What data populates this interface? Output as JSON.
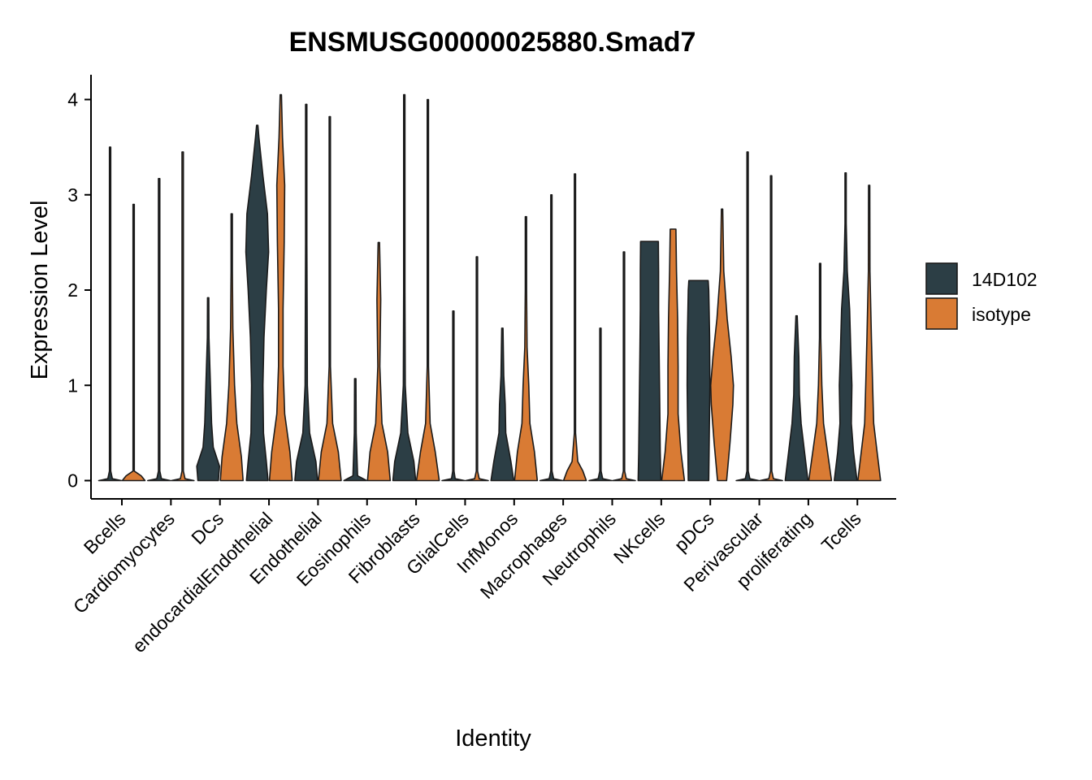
{
  "chart_data": {
    "type": "violin",
    "title": "ENSMUSG00000025880.Smad7",
    "xlabel": "Identity",
    "ylabel": "Expression Level",
    "ylim": [
      -0.2,
      4.25
    ],
    "yticks": [
      0,
      1,
      2,
      3,
      4
    ],
    "grid": false,
    "legend_position": "right",
    "categories": [
      "Bcells",
      "Cardiomyocytes",
      "DCs",
      "endocardialEndothelial",
      "Endothelial",
      "Eosinophils",
      "Fibroblasts",
      "GlialCells",
      "InfMonos",
      "Macrophages",
      "Neutrophils",
      "NKcells",
      "pDCs",
      "Perivascular",
      "proliferating",
      "Tcells"
    ],
    "series": [
      {
        "name": "14D102",
        "color": "#2C3E45",
        "max": [
          3.5,
          3.17,
          1.92,
          3.73,
          3.95,
          1.07,
          4.05,
          1.78,
          1.6,
          3.0,
          1.6,
          2.51,
          2.1,
          3.45,
          1.73,
          3.23
        ],
        "profiles": [
          [
            [
              0,
              0.5
            ],
            [
              0.02,
              0.1
            ],
            [
              0.1,
              0.01
            ],
            [
              3.5,
              0.005
            ]
          ],
          [
            [
              0,
              0.5
            ],
            [
              0.02,
              0.1
            ],
            [
              0.1,
              0.01
            ],
            [
              3.17,
              0.005
            ]
          ],
          [
            [
              0,
              0.9
            ],
            [
              0.15,
              1
            ],
            [
              0.35,
              0.45
            ],
            [
              0.6,
              0.3
            ],
            [
              1.0,
              0.2
            ],
            [
              1.5,
              0.07
            ],
            [
              1.92,
              0.02
            ]
          ],
          [
            [
              0,
              0.95
            ],
            [
              0.2,
              0.8
            ],
            [
              0.5,
              0.55
            ],
            [
              1.0,
              0.5
            ],
            [
              1.5,
              0.6
            ],
            [
              2.0,
              0.8
            ],
            [
              2.4,
              1
            ],
            [
              2.8,
              0.9
            ],
            [
              3.2,
              0.5
            ],
            [
              3.6,
              0.15
            ],
            [
              3.73,
              0.05
            ]
          ],
          [
            [
              0,
              1
            ],
            [
              0.2,
              0.85
            ],
            [
              0.5,
              0.3
            ],
            [
              1.0,
              0.1
            ],
            [
              1.8,
              0.08
            ],
            [
              2.5,
              0.04
            ],
            [
              3.95,
              0.01
            ]
          ],
          [
            [
              0,
              0.25
            ],
            [
              0.05,
              0.05
            ],
            [
              0.5,
              0.02
            ],
            [
              1.07,
              0.01
            ]
          ],
          [
            [
              0,
              0.95
            ],
            [
              0.2,
              0.8
            ],
            [
              0.5,
              0.3
            ],
            [
              1.0,
              0.08
            ],
            [
              2.0,
              0.03
            ],
            [
              4.05,
              0.01
            ]
          ],
          [
            [
              0,
              0.5
            ],
            [
              0.02,
              0.08
            ],
            [
              0.1,
              0.01
            ],
            [
              1.78,
              0.005
            ]
          ],
          [
            [
              0,
              1
            ],
            [
              0.2,
              0.75
            ],
            [
              0.5,
              0.3
            ],
            [
              0.8,
              0.25
            ],
            [
              1.1,
              0.12
            ],
            [
              1.6,
              0.03
            ]
          ],
          [
            [
              0,
              0.5
            ],
            [
              0.02,
              0.1
            ],
            [
              0.1,
              0.01
            ],
            [
              3.0,
              0.005
            ]
          ],
          [
            [
              0,
              0.5
            ],
            [
              0.02,
              0.1
            ],
            [
              0.1,
              0.01
            ],
            [
              1.6,
              0.005
            ]
          ],
          [
            [
              0,
              1
            ],
            [
              0.3,
              0.95
            ],
            [
              0.8,
              0.9
            ],
            [
              1.3,
              0.85
            ],
            [
              1.8,
              0.8
            ],
            [
              2.2,
              0.8
            ],
            [
              2.51,
              0.78
            ]
          ],
          [
            [
              0,
              0.9
            ],
            [
              0.5,
              0.95
            ],
            [
              1.0,
              1
            ],
            [
              1.5,
              0.98
            ],
            [
              2.0,
              0.9
            ],
            [
              2.1,
              0.85
            ]
          ],
          [
            [
              0,
              0.5
            ],
            [
              0.02,
              0.1
            ],
            [
              0.1,
              0.01
            ],
            [
              3.45,
              0.005
            ]
          ],
          [
            [
              0,
              1
            ],
            [
              0.3,
              0.7
            ],
            [
              0.6,
              0.4
            ],
            [
              0.9,
              0.25
            ],
            [
              1.3,
              0.2
            ],
            [
              1.6,
              0.1
            ],
            [
              1.73,
              0.05
            ]
          ],
          [
            [
              0,
              1
            ],
            [
              0.3,
              0.7
            ],
            [
              0.6,
              0.5
            ],
            [
              1.0,
              0.55
            ],
            [
              1.4,
              0.45
            ],
            [
              1.8,
              0.35
            ],
            [
              2.2,
              0.15
            ],
            [
              2.7,
              0.05
            ],
            [
              3.23,
              0.01
            ]
          ]
        ]
      },
      {
        "name": "isotype",
        "color": "#D97B34",
        "max": [
          2.9,
          3.45,
          2.8,
          4.05,
          3.82,
          2.5,
          4.0,
          2.35,
          2.77,
          3.22,
          2.4,
          2.64,
          2.85,
          3.2,
          2.28,
          3.1
        ],
        "profiles": [
          [
            [
              0,
              0.9
            ],
            [
              0.05,
              0.6
            ],
            [
              0.1,
              0.05
            ],
            [
              2.9,
              0.005
            ]
          ],
          [
            [
              0,
              0.5
            ],
            [
              0.02,
              0.1
            ],
            [
              0.1,
              0.01
            ],
            [
              3.45,
              0.005
            ]
          ],
          [
            [
              0,
              1
            ],
            [
              0.25,
              0.85
            ],
            [
              0.6,
              0.45
            ],
            [
              1.0,
              0.25
            ],
            [
              1.6,
              0.1
            ],
            [
              2.2,
              0.04
            ],
            [
              2.8,
              0.01
            ]
          ],
          [
            [
              0,
              1
            ],
            [
              0.3,
              0.8
            ],
            [
              0.7,
              0.35
            ],
            [
              1.2,
              0.2
            ],
            [
              1.8,
              0.2
            ],
            [
              2.5,
              0.3
            ],
            [
              3.1,
              0.35
            ],
            [
              3.6,
              0.15
            ],
            [
              4.05,
              0.02
            ]
          ],
          [
            [
              0,
              1
            ],
            [
              0.3,
              0.75
            ],
            [
              0.6,
              0.25
            ],
            [
              1.2,
              0.05
            ],
            [
              2.5,
              0.02
            ],
            [
              3.82,
              0.01
            ]
          ],
          [
            [
              0,
              0.9
            ],
            [
              0.3,
              0.7
            ],
            [
              0.6,
              0.25
            ],
            [
              1.2,
              0.08
            ],
            [
              1.9,
              0.15
            ],
            [
              2.5,
              0.05
            ]
          ],
          [
            [
              0,
              1
            ],
            [
              0.3,
              0.65
            ],
            [
              0.6,
              0.2
            ],
            [
              1.2,
              0.05
            ],
            [
              2.5,
              0.02
            ],
            [
              4.0,
              0.01
            ]
          ],
          [
            [
              0,
              0.5
            ],
            [
              0.02,
              0.1
            ],
            [
              0.1,
              0.01
            ],
            [
              2.35,
              0.005
            ]
          ],
          [
            [
              0,
              1
            ],
            [
              0.3,
              0.75
            ],
            [
              0.6,
              0.35
            ],
            [
              1.0,
              0.25
            ],
            [
              1.4,
              0.1
            ],
            [
              2.0,
              0.03
            ],
            [
              2.77,
              0.01
            ]
          ],
          [
            [
              0,
              1
            ],
            [
              0.1,
              0.7
            ],
            [
              0.2,
              0.25
            ],
            [
              0.5,
              0.05
            ],
            [
              1.5,
              0.02
            ],
            [
              3.22,
              0.01
            ]
          ],
          [
            [
              0,
              0.5
            ],
            [
              0.02,
              0.1
            ],
            [
              0.1,
              0.01
            ],
            [
              2.4,
              0.005
            ]
          ],
          [
            [
              0,
              1
            ],
            [
              0.3,
              0.7
            ],
            [
              0.7,
              0.45
            ],
            [
              1.2,
              0.45
            ],
            [
              1.7,
              0.4
            ],
            [
              2.2,
              0.3
            ],
            [
              2.64,
              0.25
            ]
          ],
          [
            [
              0,
              0.4
            ],
            [
              0.4,
              0.7
            ],
            [
              0.8,
              0.95
            ],
            [
              1.0,
              1
            ],
            [
              1.3,
              0.8
            ],
            [
              1.7,
              0.45
            ],
            [
              2.2,
              0.15
            ],
            [
              2.85,
              0.02
            ]
          ],
          [
            [
              0,
              0.5
            ],
            [
              0.02,
              0.1
            ],
            [
              0.1,
              0.01
            ],
            [
              3.2,
              0.005
            ]
          ],
          [
            [
              0,
              1
            ],
            [
              0.3,
              0.65
            ],
            [
              0.6,
              0.3
            ],
            [
              1.0,
              0.15
            ],
            [
              1.5,
              0.06
            ],
            [
              2.28,
              0.01
            ]
          ],
          [
            [
              0,
              1
            ],
            [
              0.3,
              0.7
            ],
            [
              0.6,
              0.4
            ],
            [
              1.0,
              0.3
            ],
            [
              1.5,
              0.2
            ],
            [
              2.2,
              0.07
            ],
            [
              3.1,
              0.01
            ]
          ]
        ]
      }
    ]
  }
}
